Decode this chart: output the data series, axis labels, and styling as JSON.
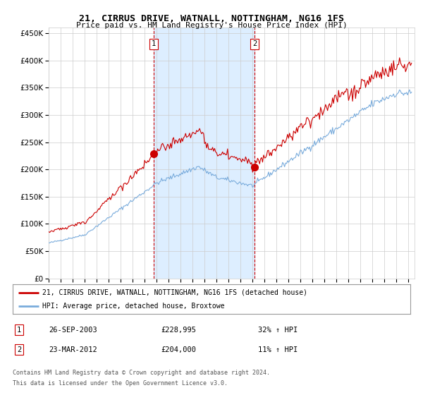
{
  "title": "21, CIRRUS DRIVE, WATNALL, NOTTINGHAM, NG16 1FS",
  "subtitle": "Price paid vs. HM Land Registry's House Price Index (HPI)",
  "legend_line1": "21, CIRRUS DRIVE, WATNALL, NOTTINGHAM, NG16 1FS (detached house)",
  "legend_line2": "HPI: Average price, detached house, Broxtowe",
  "sale1_date": "26-SEP-2003",
  "sale1_price": 228995,
  "sale1_label": "32% ↑ HPI",
  "sale2_date": "23-MAR-2012",
  "sale2_price": 204000,
  "sale2_label": "11% ↑ HPI",
  "footer1": "Contains HM Land Registry data © Crown copyright and database right 2024.",
  "footer2": "This data is licensed under the Open Government Licence v3.0.",
  "hpi_color": "#7aacdc",
  "price_color": "#cc0000",
  "marker_color": "#cc0000",
  "shade_color": "#ddeeff",
  "dashed_color": "#cc0000",
  "background_color": "#ffffff",
  "grid_color": "#cccccc",
  "ylim": [
    0,
    460000
  ],
  "xstart_year": 1995,
  "xend_year": 2025,
  "yticks": [
    0,
    50000,
    100000,
    150000,
    200000,
    250000,
    300000,
    350000,
    400000,
    450000
  ]
}
